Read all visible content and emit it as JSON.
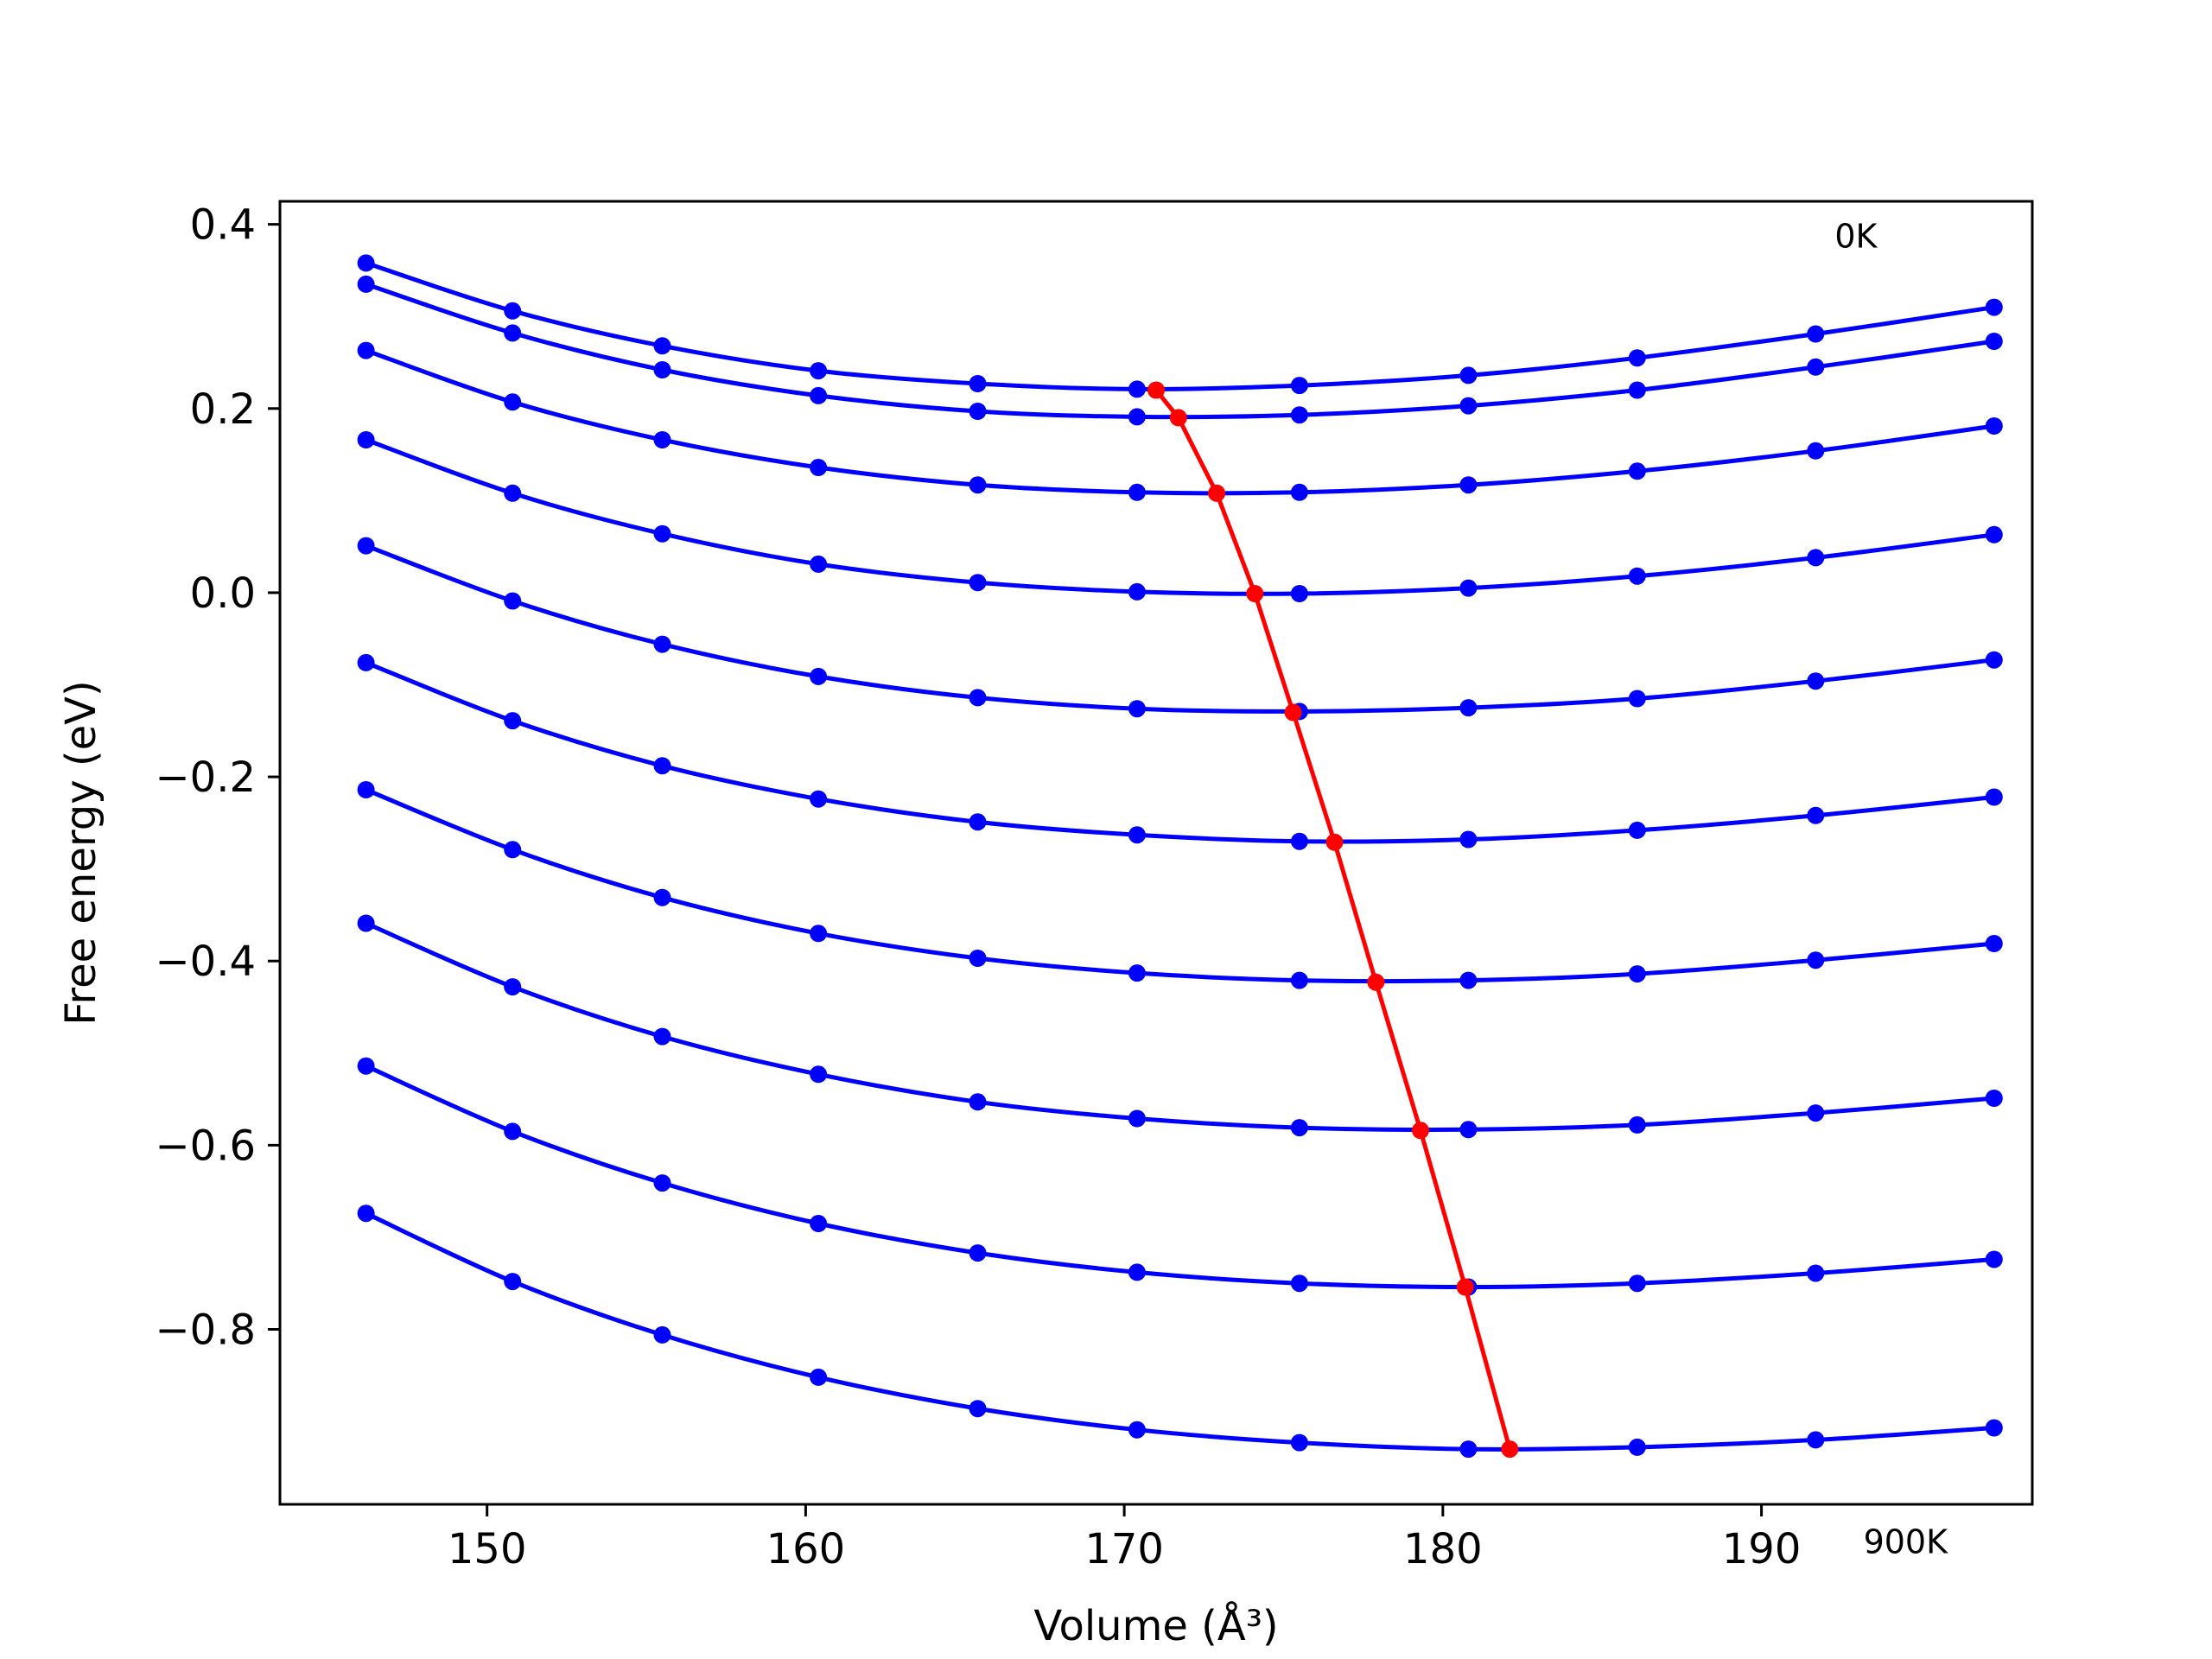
{
  "chart_data": {
    "type": "line",
    "title": "",
    "xlabel": "Volume (Å³)",
    "ylabel": "Free energy (eV)",
    "xlim": [
      143.5,
      198.5
    ],
    "ylim": [
      -0.99,
      0.425
    ],
    "xticks": [
      150,
      160,
      170,
      180,
      190
    ],
    "xtick_labels": [
      "150",
      "160",
      "170",
      "180",
      "190"
    ],
    "yticks": [
      0.4,
      0.2,
      0.0,
      -0.2,
      -0.4,
      -0.6,
      -0.8
    ],
    "ytick_labels": [
      "0.4",
      "0.2",
      "0.0",
      "−0.2",
      "−0.4",
      "−0.6",
      "−0.8"
    ],
    "grid": false,
    "annotations": [
      {
        "text": "0K",
        "x": 192.3,
        "y": 0.375
      },
      {
        "text": "900K",
        "x": 193.2,
        "y": -1.043
      }
    ],
    "x": [
      146.2,
      150.8,
      155.5,
      160.4,
      165.4,
      170.4,
      175.5,
      180.8,
      186.1,
      191.7,
      197.3
    ],
    "series": [
      {
        "color": "#0000ff",
        "values": [
          0.358,
          0.306,
          0.268,
          0.241,
          0.227,
          0.221,
          0.225,
          0.236,
          0.255,
          0.281,
          0.31
        ]
      },
      {
        "color": "#0000ff",
        "values": [
          0.335,
          0.282,
          0.242,
          0.214,
          0.197,
          0.191,
          0.193,
          0.203,
          0.22,
          0.245,
          0.273
        ]
      },
      {
        "color": "#0000ff",
        "values": [
          0.263,
          0.207,
          0.166,
          0.136,
          0.117,
          0.109,
          0.109,
          0.117,
          0.132,
          0.154,
          0.181
        ]
      },
      {
        "color": "#0000ff",
        "values": [
          0.166,
          0.108,
          0.064,
          0.031,
          0.011,
          0.001,
          -0.001,
          0.005,
          0.018,
          0.038,
          0.063
        ]
      },
      {
        "color": "#0000ff",
        "values": [
          0.051,
          -0.009,
          -0.056,
          -0.091,
          -0.114,
          -0.126,
          -0.129,
          -0.125,
          -0.115,
          -0.096,
          -0.073
        ]
      },
      {
        "color": "#0000ff",
        "values": [
          -0.076,
          -0.139,
          -0.188,
          -0.224,
          -0.249,
          -0.263,
          -0.27,
          -0.268,
          -0.258,
          -0.242,
          -0.222
        ]
      },
      {
        "color": "#0000ff",
        "values": [
          -0.214,
          -0.279,
          -0.331,
          -0.37,
          -0.397,
          -0.413,
          -0.421,
          -0.421,
          -0.414,
          -0.399,
          -0.381
        ]
      },
      {
        "color": "#0000ff",
        "values": [
          -0.359,
          -0.428,
          -0.482,
          -0.523,
          -0.553,
          -0.571,
          -0.581,
          -0.583,
          -0.578,
          -0.565,
          -0.549
        ]
      },
      {
        "color": "#0000ff",
        "values": [
          -0.514,
          -0.585,
          -0.641,
          -0.685,
          -0.717,
          -0.738,
          -0.75,
          -0.754,
          -0.75,
          -0.739,
          -0.724
        ]
      },
      {
        "color": "#0000ff",
        "values": [
          -0.674,
          -0.748,
          -0.806,
          -0.852,
          -0.886,
          -0.909,
          -0.923,
          -0.93,
          -0.928,
          -0.92,
          -0.907
        ]
      }
    ],
    "minima": {
      "color": "#ff0000",
      "x": [
        171.0,
        171.7,
        172.9,
        174.1,
        175.3,
        176.6,
        177.9,
        179.3,
        180.7,
        182.1
      ],
      "values": [
        0.22,
        0.19,
        0.108,
        -0.001,
        -0.13,
        -0.271,
        -0.423,
        -0.584,
        -0.754,
        -0.93
      ]
    }
  }
}
